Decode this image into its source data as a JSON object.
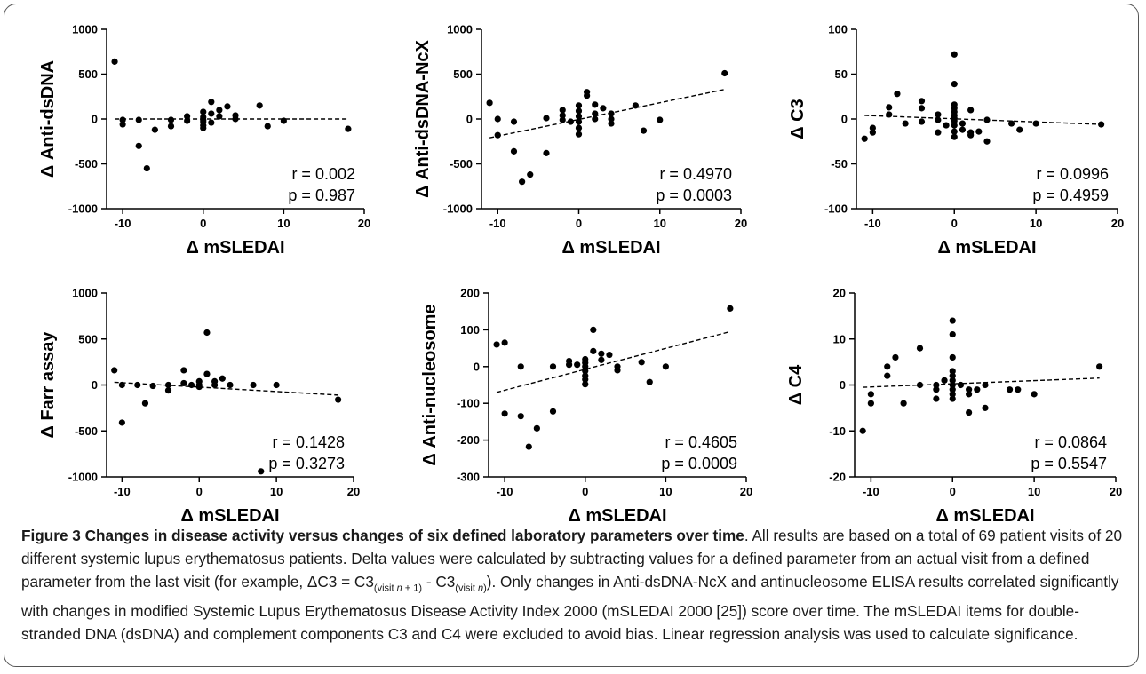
{
  "chart_data": [
    {
      "type": "scatter",
      "xlabel": "Δ mSLEDAI",
      "ylabel": "Δ Anti-dsDNA",
      "xlim": [
        -12,
        20
      ],
      "ylim": [
        -1000,
        1000
      ],
      "x_ticks": [
        -10,
        0,
        10,
        20
      ],
      "y_ticks": [
        -1000,
        -500,
        0,
        500,
        1000
      ],
      "stats": [
        "r = 0.002",
        "p = 0.987"
      ],
      "trendline": {
        "style": "dashed",
        "x": [
          -11,
          18
        ],
        "y": [
          0,
          0
        ]
      },
      "points": [
        [
          -11,
          640
        ],
        [
          -10,
          -10
        ],
        [
          -10,
          -60
        ],
        [
          -8,
          -10
        ],
        [
          -8,
          -300
        ],
        [
          -7,
          -550
        ],
        [
          -6,
          -120
        ],
        [
          -4,
          -10
        ],
        [
          -4,
          -80
        ],
        [
          -2,
          30
        ],
        [
          -2,
          -20
        ],
        [
          0,
          80
        ],
        [
          0,
          20
        ],
        [
          0,
          -10
        ],
        [
          0,
          -30
        ],
        [
          0,
          -70
        ],
        [
          0,
          -100
        ],
        [
          1,
          190
        ],
        [
          1,
          60
        ],
        [
          1,
          -40
        ],
        [
          2,
          100
        ],
        [
          2,
          30
        ],
        [
          3,
          140
        ],
        [
          4,
          40
        ],
        [
          4,
          0
        ],
        [
          7,
          150
        ],
        [
          8,
          -80
        ],
        [
          10,
          -20
        ],
        [
          18,
          -110
        ]
      ]
    },
    {
      "type": "scatter",
      "xlabel": "Δ mSLEDAI",
      "ylabel": "Δ Anti-dsDNA-NcX",
      "xlim": [
        -12,
        20
      ],
      "ylim": [
        -1000,
        1000
      ],
      "x_ticks": [
        -10,
        0,
        10,
        20
      ],
      "y_ticks": [
        -1000,
        -500,
        0,
        500,
        1000
      ],
      "stats": [
        "r = 0.4970",
        "p = 0.0003"
      ],
      "trendline": {
        "style": "dashed",
        "x": [
          -11,
          18
        ],
        "y": [
          -210,
          330
        ]
      },
      "points": [
        [
          -11,
          180
        ],
        [
          -10,
          0
        ],
        [
          -10,
          -180
        ],
        [
          -8,
          -30
        ],
        [
          -8,
          -360
        ],
        [
          -7,
          -700
        ],
        [
          -6,
          -620
        ],
        [
          -4,
          10
        ],
        [
          -4,
          -380
        ],
        [
          -2,
          100
        ],
        [
          -2,
          40
        ],
        [
          -2,
          -10
        ],
        [
          -1,
          -30
        ],
        [
          0,
          150
        ],
        [
          0,
          90
        ],
        [
          0,
          30
        ],
        [
          0,
          -30
        ],
        [
          0,
          -100
        ],
        [
          0,
          -170
        ],
        [
          1,
          300
        ],
        [
          1,
          260
        ],
        [
          2,
          160
        ],
        [
          2,
          60
        ],
        [
          2,
          0
        ],
        [
          3,
          120
        ],
        [
          4,
          60
        ],
        [
          4,
          0
        ],
        [
          4,
          -50
        ],
        [
          7,
          150
        ],
        [
          8,
          -130
        ],
        [
          10,
          -10
        ],
        [
          18,
          510
        ]
      ]
    },
    {
      "type": "scatter",
      "xlabel": "Δ mSLEDAI",
      "ylabel": "Δ C3",
      "xlim": [
        -12,
        20
      ],
      "ylim": [
        -100,
        100
      ],
      "x_ticks": [
        -10,
        0,
        10,
        20
      ],
      "y_ticks": [
        -100,
        -50,
        0,
        50,
        100
      ],
      "stats": [
        "r = 0.0996",
        "p = 0.4959"
      ],
      "trendline": {
        "style": "dashed",
        "x": [
          -11,
          18
        ],
        "y": [
          4,
          -6
        ]
      },
      "points": [
        [
          -11,
          -22
        ],
        [
          -10,
          -10
        ],
        [
          -10,
          -15
        ],
        [
          -8,
          13
        ],
        [
          -8,
          5
        ],
        [
          -7,
          28
        ],
        [
          -6,
          -5
        ],
        [
          -4,
          20
        ],
        [
          -4,
          12
        ],
        [
          -4,
          -3
        ],
        [
          -2,
          5
        ],
        [
          -2,
          -1
        ],
        [
          -2,
          -15
        ],
        [
          -1,
          -7
        ],
        [
          0,
          72
        ],
        [
          0,
          39
        ],
        [
          0,
          16
        ],
        [
          0,
          12
        ],
        [
          0,
          8
        ],
        [
          0,
          4
        ],
        [
          0,
          1
        ],
        [
          0,
          -2
        ],
        [
          0,
          -7
        ],
        [
          0,
          -14
        ],
        [
          0,
          -20
        ],
        [
          1,
          -5
        ],
        [
          1,
          -12
        ],
        [
          2,
          10
        ],
        [
          2,
          -15
        ],
        [
          2,
          -18
        ],
        [
          3,
          -14
        ],
        [
          4,
          -1
        ],
        [
          4,
          -25
        ],
        [
          7,
          -5
        ],
        [
          8,
          -12
        ],
        [
          10,
          -5
        ],
        [
          18,
          -6
        ]
      ]
    },
    {
      "type": "scatter",
      "xlabel": "Δ mSLEDAI",
      "ylabel": "Δ Farr assay",
      "xlim": [
        -12,
        20
      ],
      "ylim": [
        -1000,
        1000
      ],
      "x_ticks": [
        -10,
        0,
        10,
        20
      ],
      "y_ticks": [
        -1000,
        -500,
        0,
        500,
        1000
      ],
      "stats": [
        "r = 0.1428",
        "p = 0.3273"
      ],
      "trendline": {
        "style": "dashed",
        "x": [
          -11,
          18
        ],
        "y": [
          30,
          -110
        ]
      },
      "points": [
        [
          -11,
          160
        ],
        [
          -10,
          0
        ],
        [
          -10,
          -410
        ],
        [
          -8,
          0
        ],
        [
          -7,
          -200
        ],
        [
          -6,
          -10
        ],
        [
          -4,
          0
        ],
        [
          -4,
          -60
        ],
        [
          -2,
          160
        ],
        [
          -2,
          20
        ],
        [
          -1,
          0
        ],
        [
          0,
          40
        ],
        [
          0,
          0
        ],
        [
          0,
          -20
        ],
        [
          1,
          570
        ],
        [
          1,
          120
        ],
        [
          2,
          40
        ],
        [
          2,
          0
        ],
        [
          3,
          70
        ],
        [
          4,
          0
        ],
        [
          7,
          0
        ],
        [
          8,
          -940
        ],
        [
          10,
          0
        ],
        [
          18,
          -160
        ]
      ]
    },
    {
      "type": "scatter",
      "xlabel": "Δ mSLEDAI",
      "ylabel": "Δ Anti-nucleosome",
      "xlim": [
        -12,
        20
      ],
      "ylim": [
        -300,
        200
      ],
      "x_ticks": [
        -10,
        0,
        10,
        20
      ],
      "y_ticks": [
        -300,
        -200,
        -100,
        0,
        100,
        200
      ],
      "stats": [
        "r = 0.4605",
        "p = 0.0009"
      ],
      "trendline": {
        "style": "dashed",
        "x": [
          -11,
          18
        ],
        "y": [
          -70,
          95
        ]
      },
      "points": [
        [
          -11,
          60
        ],
        [
          -10,
          65
        ],
        [
          -10,
          -128
        ],
        [
          -8,
          0
        ],
        [
          -8,
          -135
        ],
        [
          -7,
          -218
        ],
        [
          -6,
          -168
        ],
        [
          -4,
          0
        ],
        [
          -4,
          -122
        ],
        [
          -2,
          15
        ],
        [
          -2,
          5
        ],
        [
          -1,
          5
        ],
        [
          0,
          20
        ],
        [
          0,
          10
        ],
        [
          0,
          0
        ],
        [
          0,
          -12
        ],
        [
          0,
          -25
        ],
        [
          0,
          -35
        ],
        [
          0,
          -48
        ],
        [
          1,
          100
        ],
        [
          1,
          42
        ],
        [
          2,
          35
        ],
        [
          2,
          18
        ],
        [
          3,
          32
        ],
        [
          4,
          0
        ],
        [
          4,
          -10
        ],
        [
          7,
          12
        ],
        [
          8,
          -42
        ],
        [
          10,
          0
        ],
        [
          18,
          158
        ]
      ]
    },
    {
      "type": "scatter",
      "xlabel": "Δ mSLEDAI",
      "ylabel": "Δ C4",
      "xlim": [
        -12,
        20
      ],
      "ylim": [
        -20,
        20
      ],
      "x_ticks": [
        -10,
        0,
        10,
        20
      ],
      "y_ticks": [
        -20,
        -10,
        0,
        10,
        20
      ],
      "stats": [
        "r = 0.0864",
        "p = 0.5547"
      ],
      "trendline": {
        "style": "dashed",
        "x": [
          -11,
          18
        ],
        "y": [
          -0.5,
          1.5
        ]
      },
      "points": [
        [
          -11,
          -10
        ],
        [
          -10,
          -2
        ],
        [
          -10,
          -4
        ],
        [
          -8,
          4
        ],
        [
          -8,
          2
        ],
        [
          -7,
          6
        ],
        [
          -6,
          -4
        ],
        [
          -4,
          8
        ],
        [
          -4,
          0
        ],
        [
          -2,
          0
        ],
        [
          -2,
          -1
        ],
        [
          -2,
          -3
        ],
        [
          -1,
          1
        ],
        [
          0,
          14
        ],
        [
          0,
          11
        ],
        [
          0,
          6
        ],
        [
          0,
          3
        ],
        [
          0,
          2
        ],
        [
          0,
          1
        ],
        [
          0,
          0
        ],
        [
          0,
          -1
        ],
        [
          0,
          -2
        ],
        [
          0,
          -3
        ],
        [
          1,
          0
        ],
        [
          2,
          -1
        ],
        [
          2,
          -2
        ],
        [
          2,
          -6
        ],
        [
          3,
          -1
        ],
        [
          4,
          0
        ],
        [
          4,
          -5
        ],
        [
          7,
          -1
        ],
        [
          8,
          -1
        ],
        [
          10,
          -2
        ],
        [
          18,
          4
        ]
      ]
    }
  ],
  "caption": {
    "title": "Figure 3 Changes in disease activity versus changes of six defined laboratory parameters over time",
    "text_1": ". All results are based on a total of 69 patient visits of 20 different systemic lupus erythematosus patients. Delta values were calculated by subtracting values for a defined parameter from an actual visit from a defined parameter from the last visit (for example, ΔC3 = C3",
    "sub_1_a": "(visit ",
    "sub_1_n": "n",
    "sub_1_b": " + 1)",
    "text_2": " - C3",
    "sub_2_a": "(visit ",
    "sub_2_n": "n",
    "sub_2_b": ")",
    "text_3": "). Only changes in Anti-dsDNA-NcX and antinucleosome ELISA results correlated significantly with changes in modified Systemic Lupus Erythematosus Disease Activity Index 2000 (mSLEDAI 2000 [25]) score over time. The mSLEDAI items for double-stranded DNA (dsDNA) and complement components C3 and C4 were excluded to avoid bias. Linear regression analysis was used to calculate significance."
  }
}
